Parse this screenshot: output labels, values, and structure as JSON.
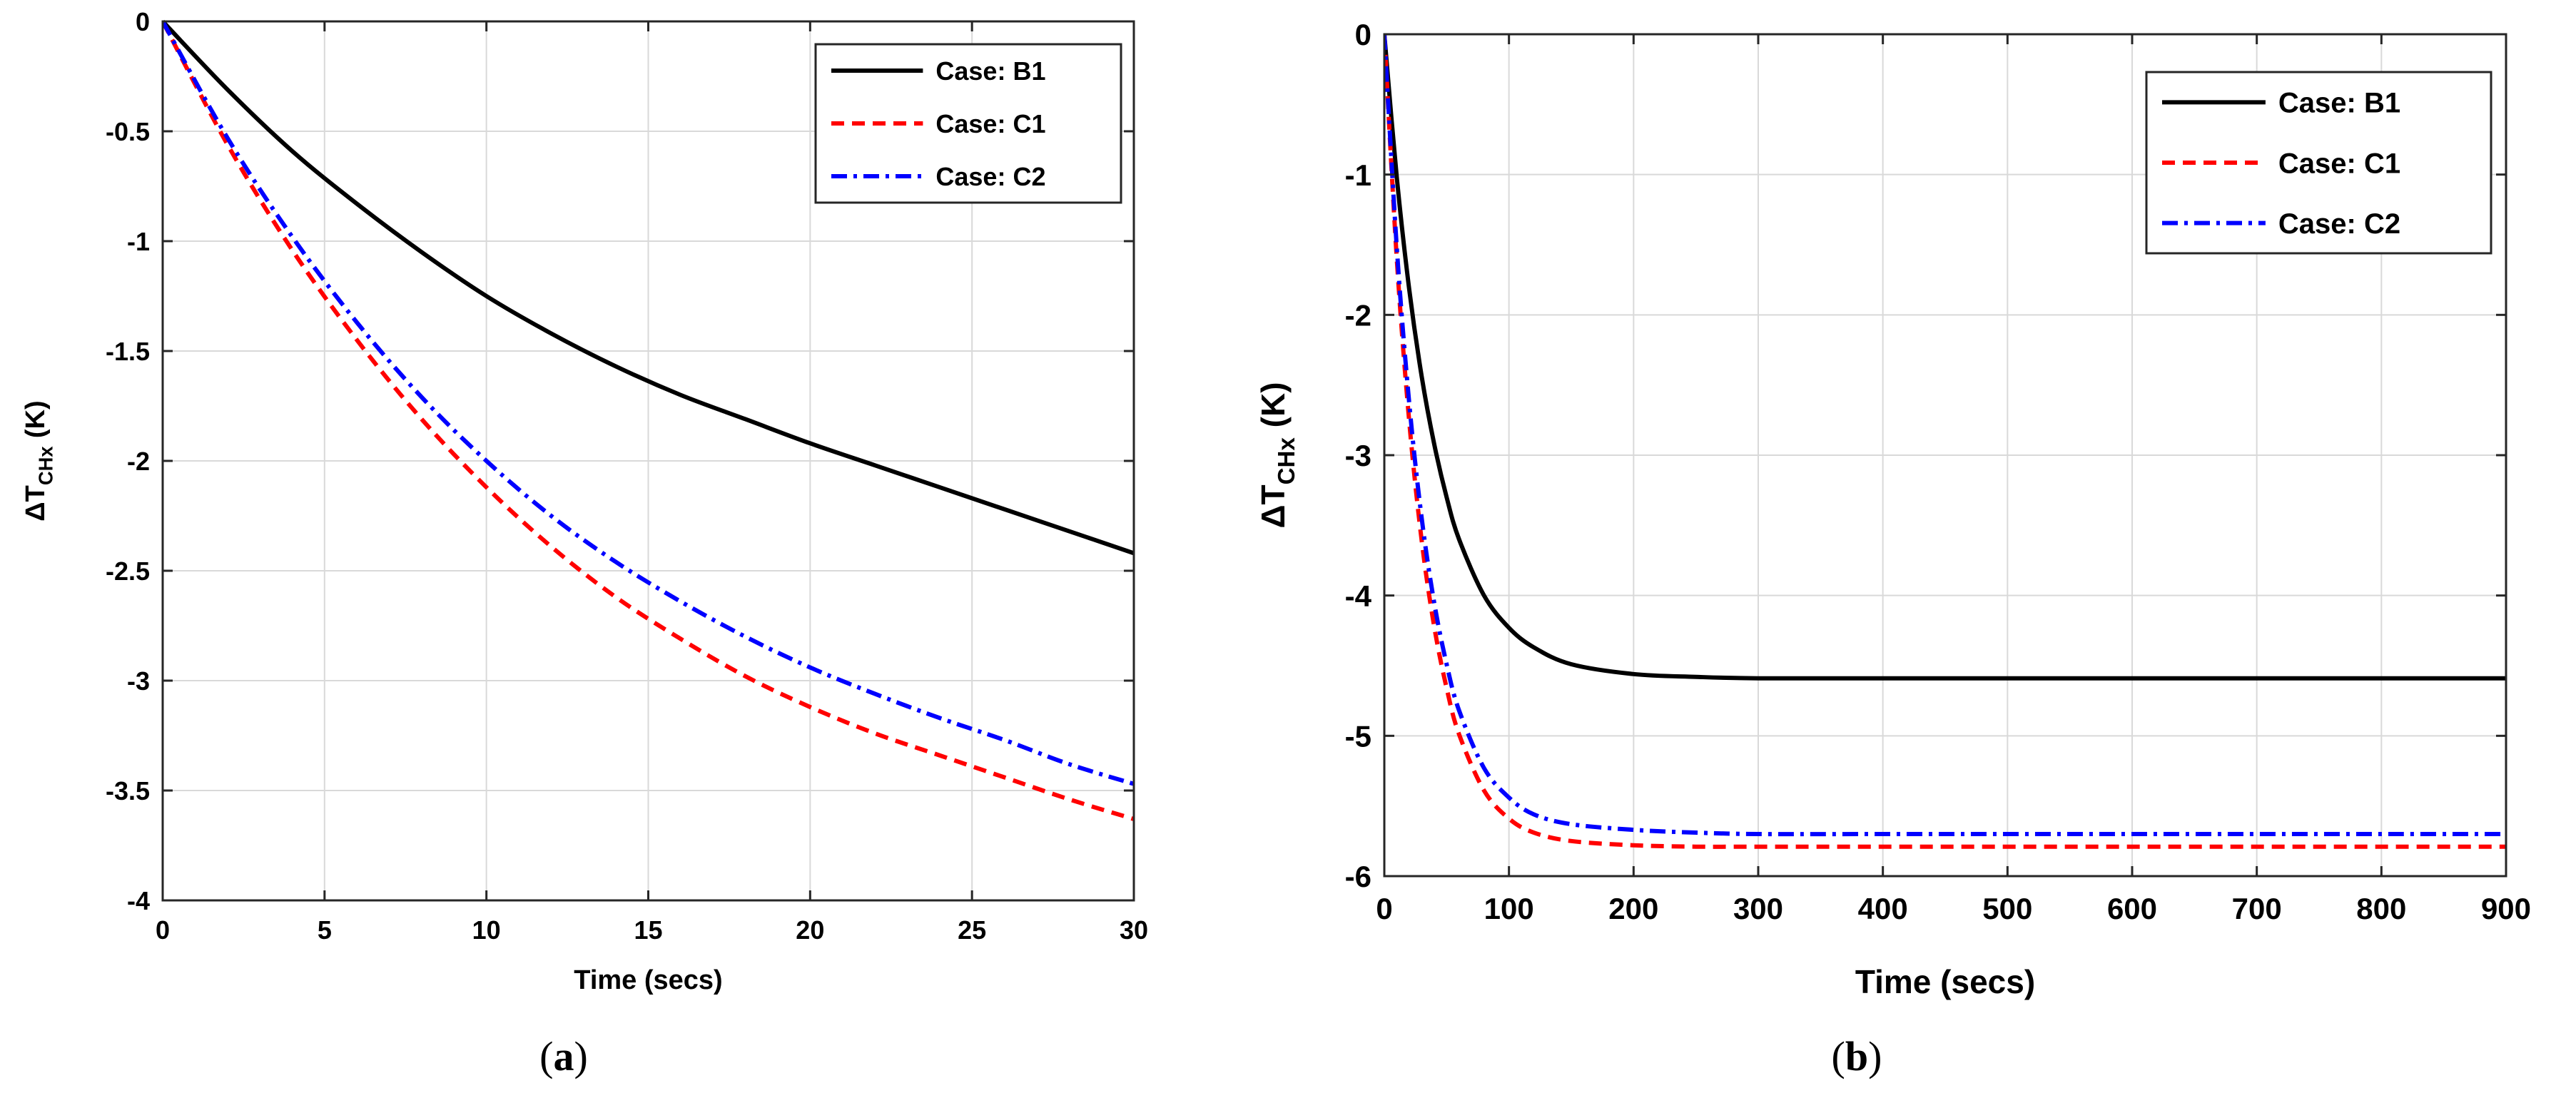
{
  "chart_data": [
    {
      "type": "line",
      "panel_label": "a",
      "xlabel": "Time (secs)",
      "ylabel": "ΔT",
      "ylabel_sub": "CHx",
      "ylabel_unit": "(K)",
      "xlim": [
        0,
        30
      ],
      "ylim": [
        -4,
        0
      ],
      "xticks": [
        0,
        5,
        10,
        15,
        20,
        25,
        30
      ],
      "yticks": [
        0,
        -0.5,
        -1,
        -1.5,
        -2,
        -2.5,
        -3,
        -3.5,
        -4
      ],
      "xtick_labels": [
        "0",
        "5",
        "10",
        "15",
        "20",
        "25",
        "30"
      ],
      "ytick_labels": [
        "0",
        "-0.5",
        "-1",
        "-1.5",
        "-2",
        "-2.5",
        "-3",
        "-3.5",
        "-4"
      ],
      "grid": true,
      "legend_position": "top-right",
      "x": [
        0,
        2,
        4,
        6,
        8,
        10,
        12,
        14,
        16,
        18,
        20,
        22,
        24,
        26,
        28,
        30
      ],
      "series": [
        {
          "name": "Case: B1",
          "color": "#000000",
          "style": "solid",
          "values": [
            0,
            -0.31,
            -0.59,
            -0.83,
            -1.05,
            -1.25,
            -1.42,
            -1.57,
            -1.7,
            -1.81,
            -1.92,
            -2.02,
            -2.12,
            -2.22,
            -2.32,
            -2.42
          ]
        },
        {
          "name": "Case: C1",
          "color": "#ff0000",
          "style": "dashed",
          "values": [
            0,
            -0.56,
            -1.04,
            -1.45,
            -1.81,
            -2.12,
            -2.39,
            -2.62,
            -2.81,
            -2.98,
            -3.12,
            -3.24,
            -3.34,
            -3.44,
            -3.54,
            -3.63
          ]
        },
        {
          "name": "Case: C2",
          "color": "#0000ff",
          "style": "dashdot",
          "values": [
            0,
            -0.53,
            -0.98,
            -1.37,
            -1.71,
            -2.0,
            -2.25,
            -2.46,
            -2.64,
            -2.8,
            -2.94,
            -3.06,
            -3.17,
            -3.27,
            -3.38,
            -3.47
          ]
        }
      ]
    },
    {
      "type": "line",
      "panel_label": "b",
      "xlabel": "Time (secs)",
      "ylabel": "ΔT",
      "ylabel_sub": "CHx",
      "ylabel_unit": "(K)",
      "xlim": [
        0,
        900
      ],
      "ylim": [
        -6,
        0
      ],
      "xticks": [
        0,
        100,
        200,
        300,
        400,
        500,
        600,
        700,
        800,
        900
      ],
      "yticks": [
        0,
        -1,
        -2,
        -3,
        -4,
        -5,
        -6
      ],
      "xtick_labels": [
        "0",
        "100",
        "200",
        "300",
        "400",
        "500",
        "600",
        "700",
        "800",
        "900"
      ],
      "ytick_labels": [
        "0",
        "-1",
        "-2",
        "-3",
        "-4",
        "-5",
        "-6"
      ],
      "grid": true,
      "legend_position": "top-right",
      "x": [
        0,
        10,
        20,
        30,
        40,
        50,
        60,
        80,
        100,
        120,
        150,
        200,
        250,
        300,
        400,
        500,
        600,
        700,
        800,
        900
      ],
      "series": [
        {
          "name": "Case: B1",
          "color": "#000000",
          "style": "solid",
          "values": [
            0,
            -1.02,
            -1.82,
            -2.44,
            -2.92,
            -3.3,
            -3.6,
            -4.0,
            -4.23,
            -4.37,
            -4.49,
            -4.56,
            -4.58,
            -4.59,
            -4.59,
            -4.59,
            -4.59,
            -4.59,
            -4.59,
            -4.59
          ]
        },
        {
          "name": "Case: C1",
          "color": "#ff0000",
          "style": "dashed",
          "values": [
            0,
            -1.6,
            -2.76,
            -3.61,
            -4.22,
            -4.66,
            -4.99,
            -5.39,
            -5.59,
            -5.69,
            -5.75,
            -5.78,
            -5.79,
            -5.79,
            -5.79,
            -5.79,
            -5.79,
            -5.79,
            -5.79,
            -5.79
          ]
        },
        {
          "name": "Case: C2",
          "color": "#0000ff",
          "style": "dashdot",
          "values": [
            0,
            -1.52,
            -2.63,
            -3.45,
            -4.05,
            -4.49,
            -4.82,
            -5.23,
            -5.44,
            -5.56,
            -5.63,
            -5.67,
            -5.69,
            -5.7,
            -5.7,
            -5.7,
            -5.7,
            -5.7,
            -5.7,
            -5.7
          ]
        }
      ]
    }
  ]
}
